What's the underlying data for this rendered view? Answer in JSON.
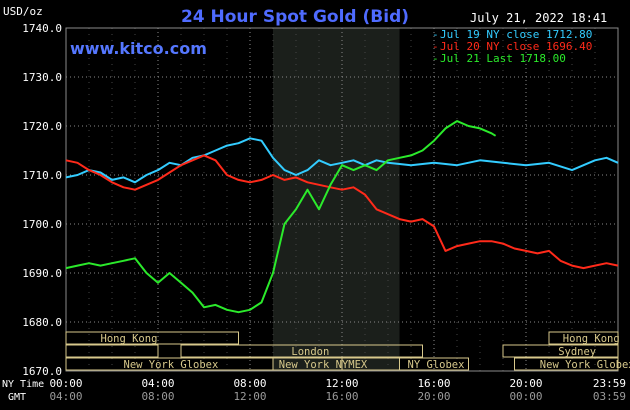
{
  "header": {
    "unit_label": "USD/oz",
    "title": "24 Hour Spot Gold (Bid)",
    "timestamp": "July 21, 2022 18:41",
    "brand": "www.kitco.com"
  },
  "colors": {
    "background": "#000000",
    "title": "#4f6bff",
    "brand": "#5577ff",
    "grid": "#8a8a8a",
    "axis_text": "#ffffff",
    "night_shade": "#1b1f1b",
    "session_box": "#d8c98c",
    "jul19": "#33ccff",
    "jul20": "#ff2a1a",
    "jul21": "#2bea2b"
  },
  "chart_data": {
    "type": "line",
    "title": "24 Hour Spot Gold (Bid)",
    "ylabel": "USD/oz",
    "ylim": [
      1670,
      1740
    ],
    "y_ticks": [
      "1670.0",
      "1680.0",
      "1690.0",
      "1700.0",
      "1710.0",
      "1720.0",
      "1730.0",
      "1740.0"
    ],
    "xlim": [
      0,
      24
    ],
    "x_ticks_ny": [
      "00:00",
      "04:00",
      "08:00",
      "12:00",
      "16:00",
      "20:00",
      "23:59"
    ],
    "x_ticks_gmt": [
      "04:00",
      "08:00",
      "12:00",
      "16:00",
      "20:00",
      "00:00",
      "03:59"
    ],
    "x_axis_label_ny": "NY Time",
    "x_axis_label_gmt": "GMT",
    "grid": true,
    "shaded_session": [
      9,
      14.5
    ],
    "legend_position": "top-right",
    "series": [
      {
        "name": "Jul 19 NY close 1712.80",
        "color": "#33ccff",
        "points": [
          [
            0,
            1709.5
          ],
          [
            0.5,
            1710
          ],
          [
            1,
            1711
          ],
          [
            1.5,
            1710.5
          ],
          [
            2,
            1709
          ],
          [
            2.5,
            1709.5
          ],
          [
            3,
            1708.5
          ],
          [
            3.5,
            1710
          ],
          [
            4,
            1711
          ],
          [
            4.5,
            1712.5
          ],
          [
            5,
            1712
          ],
          [
            5.5,
            1713.5
          ],
          [
            6,
            1714
          ],
          [
            6.5,
            1715
          ],
          [
            7,
            1716
          ],
          [
            7.5,
            1716.5
          ],
          [
            8,
            1717.5
          ],
          [
            8.5,
            1717
          ],
          [
            9,
            1713.5
          ],
          [
            9.5,
            1711
          ],
          [
            10,
            1710
          ],
          [
            10.5,
            1711
          ],
          [
            11,
            1713
          ],
          [
            11.5,
            1712
          ],
          [
            12,
            1712.5
          ],
          [
            12.5,
            1713
          ],
          [
            13,
            1712
          ],
          [
            13.5,
            1713
          ],
          [
            14,
            1712.5
          ],
          [
            15,
            1712
          ],
          [
            16,
            1712.5
          ],
          [
            17,
            1712
          ],
          [
            18,
            1713
          ],
          [
            19,
            1712.5
          ],
          [
            20,
            1712
          ],
          [
            21,
            1712.5
          ],
          [
            22,
            1711
          ],
          [
            23,
            1713
          ],
          [
            23.5,
            1713.5
          ],
          [
            24,
            1712.5
          ]
        ]
      },
      {
        "name": "Jul 20 NY close 1696.40",
        "color": "#ff2a1a",
        "points": [
          [
            0,
            1713
          ],
          [
            0.5,
            1712.5
          ],
          [
            1,
            1711
          ],
          [
            1.5,
            1710
          ],
          [
            2,
            1708.5
          ],
          [
            2.5,
            1707.5
          ],
          [
            3,
            1707
          ],
          [
            3.5,
            1708
          ],
          [
            4,
            1709
          ],
          [
            4.5,
            1710.5
          ],
          [
            5,
            1712
          ],
          [
            5.5,
            1713
          ],
          [
            6,
            1714
          ],
          [
            6.5,
            1713
          ],
          [
            7,
            1710
          ],
          [
            7.5,
            1709
          ],
          [
            8,
            1708.5
          ],
          [
            8.5,
            1709
          ],
          [
            9,
            1710
          ],
          [
            9.5,
            1709
          ],
          [
            10,
            1709.5
          ],
          [
            10.5,
            1708.5
          ],
          [
            11,
            1708
          ],
          [
            11.5,
            1707.5
          ],
          [
            12,
            1707
          ],
          [
            12.5,
            1707.5
          ],
          [
            13,
            1706
          ],
          [
            13.5,
            1703
          ],
          [
            14,
            1702
          ],
          [
            14.5,
            1701
          ],
          [
            15,
            1700.5
          ],
          [
            15.5,
            1701
          ],
          [
            16,
            1699.5
          ],
          [
            16.5,
            1694.5
          ],
          [
            17,
            1695.5
          ],
          [
            17.5,
            1696
          ],
          [
            18,
            1696.5
          ],
          [
            18.5,
            1696.5
          ],
          [
            19,
            1696
          ],
          [
            19.5,
            1695
          ],
          [
            20,
            1694.5
          ],
          [
            20.5,
            1694
          ],
          [
            21,
            1694.5
          ],
          [
            21.5,
            1692.5
          ],
          [
            22,
            1691.5
          ],
          [
            22.5,
            1691
          ],
          [
            23,
            1691.5
          ],
          [
            23.5,
            1692
          ],
          [
            24,
            1691.5
          ]
        ]
      },
      {
        "name": "Jul 21 Last 1718.00",
        "color": "#2bea2b",
        "points": [
          [
            0,
            1691
          ],
          [
            0.5,
            1691.5
          ],
          [
            1,
            1692
          ],
          [
            1.5,
            1691.5
          ],
          [
            2,
            1692
          ],
          [
            2.5,
            1692.5
          ],
          [
            3,
            1693
          ],
          [
            3.5,
            1690
          ],
          [
            4,
            1688
          ],
          [
            4.5,
            1690
          ],
          [
            5,
            1688
          ],
          [
            5.5,
            1686
          ],
          [
            6,
            1683
          ],
          [
            6.5,
            1683.5
          ],
          [
            7,
            1682.5
          ],
          [
            7.5,
            1682
          ],
          [
            8,
            1682.5
          ],
          [
            8.5,
            1684
          ],
          [
            9,
            1690
          ],
          [
            9.5,
            1700
          ],
          [
            10,
            1703
          ],
          [
            10.5,
            1707
          ],
          [
            11,
            1703
          ],
          [
            11.5,
            1708
          ],
          [
            12,
            1712
          ],
          [
            12.5,
            1711
          ],
          [
            13,
            1712
          ],
          [
            13.5,
            1711
          ],
          [
            14,
            1713
          ],
          [
            14.5,
            1713.5
          ],
          [
            15,
            1714
          ],
          [
            15.5,
            1715
          ],
          [
            16,
            1717
          ],
          [
            16.5,
            1719.5
          ],
          [
            17,
            1721
          ],
          [
            17.5,
            1720
          ],
          [
            18,
            1719.5
          ],
          [
            18.5,
            1718.5
          ],
          [
            18.68,
            1718
          ]
        ]
      }
    ]
  },
  "sessions": {
    "hong_kong": "Hong Kong",
    "london": "London",
    "ny_globex": "New York Globex",
    "ny_nymex": "New York NYMEX",
    "ny_globex_short": "NY Globex",
    "sydney": "Sydney"
  }
}
